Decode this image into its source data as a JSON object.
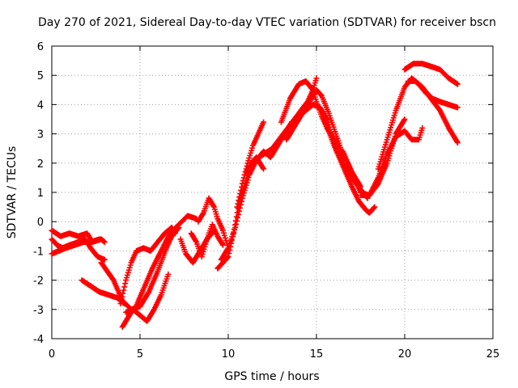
{
  "chart_data": {
    "type": "scatter",
    "title": "Day 270 of 2021, Sidereal Day-to-day VTEC variation (SDTVAR) for receiver bscn",
    "xlabel": "GPS time / hours",
    "ylabel": "SDTVAR / TECUs",
    "xlim": [
      0,
      25
    ],
    "ylim": [
      -4,
      6
    ],
    "x_ticks": [
      "0",
      "5",
      "10",
      "15",
      "20",
      "25"
    ],
    "y_ticks": [
      "-4",
      "-3",
      "-2",
      "-1",
      "0",
      "1",
      "2",
      "3",
      "4",
      "5",
      "6"
    ],
    "grid": true,
    "marker": "plus",
    "color": "#ff0000",
    "series": [
      {
        "name": "s1",
        "x": [
          0.0,
          0.5,
          1.0,
          1.5,
          2.0,
          2.3,
          2.8,
          3.0
        ],
        "y": [
          -0.3,
          -0.5,
          -0.4,
          -0.5,
          -0.4,
          -0.7,
          -0.6,
          -0.7
        ]
      },
      {
        "name": "s2",
        "x": [
          0.0,
          0.3,
          0.6,
          1.0,
          1.5,
          1.9,
          2.2,
          2.6,
          3.0
        ],
        "y": [
          -0.6,
          -0.8,
          -0.9,
          -0.8,
          -0.7,
          -0.6,
          -0.9,
          -1.2,
          -1.3
        ]
      },
      {
        "name": "s3",
        "x": [
          2.8,
          3.5,
          4.0,
          4.5,
          5.0,
          5.5,
          6.0,
          6.5,
          6.8,
          7.2
        ],
        "y": [
          -1.4,
          -2.0,
          -2.7,
          -3.0,
          -2.9,
          -2.4,
          -1.7,
          -0.9,
          -0.5,
          -0.2
        ]
      },
      {
        "name": "s4",
        "x": [
          0.0,
          0.4,
          0.8,
          1.3,
          1.8,
          2.2,
          2.7
        ],
        "y": [
          -1.1,
          -1.0,
          -0.9,
          -0.8,
          -0.7,
          -0.7,
          -0.6
        ]
      },
      {
        "name": "s5",
        "x": [
          1.7,
          2.2,
          2.7,
          3.2,
          3.7,
          4.1
        ],
        "y": [
          -2.0,
          -2.2,
          -2.4,
          -2.5,
          -2.6,
          -2.8
        ]
      },
      {
        "name": "s6",
        "x": [
          4.0,
          4.3,
          4.6,
          5.0,
          5.4,
          5.8,
          6.2,
          6.6
        ],
        "y": [
          -3.6,
          -3.3,
          -3.0,
          -3.2,
          -3.4,
          -3.0,
          -2.5,
          -1.8
        ]
      },
      {
        "name": "s7",
        "x": [
          3.9,
          4.2,
          4.5,
          4.8,
          5.2,
          5.6,
          6.0,
          6.4,
          6.8,
          7.0
        ],
        "y": [
          -2.8,
          -2.0,
          -1.4,
          -1.0,
          -0.9,
          -1.0,
          -0.7,
          -0.4,
          -0.2,
          -0.4
        ]
      },
      {
        "name": "s8",
        "x": [
          4.2,
          4.7,
          5.2,
          5.7,
          6.2,
          6.7,
          7.2,
          7.7,
          8.2
        ],
        "y": [
          -3.1,
          -3.0,
          -2.3,
          -1.6,
          -1.0,
          -0.4,
          -0.1,
          0.2,
          0.1
        ]
      },
      {
        "name": "s9",
        "x": [
          7.3,
          7.6,
          8.0,
          8.4,
          8.8,
          9.2
        ],
        "y": [
          -0.6,
          -1.1,
          -1.4,
          -1.0,
          -0.6,
          -0.3
        ]
      },
      {
        "name": "s10",
        "x": [
          7.9,
          8.2,
          8.5,
          8.8,
          9.1,
          9.4,
          9.7
        ],
        "y": [
          -0.4,
          -0.7,
          -1.2,
          -0.6,
          -0.1,
          -0.5,
          -0.8
        ]
      },
      {
        "name": "s11",
        "x": [
          8.3,
          8.6,
          8.9,
          9.2,
          9.4,
          9.7,
          10.0
        ],
        "y": [
          0.0,
          0.3,
          0.8,
          0.5,
          0.1,
          -0.3,
          -0.9
        ]
      },
      {
        "name": "s12",
        "x": [
          9.4,
          9.7,
          10.0,
          10.3,
          10.6,
          11.0,
          11.3,
          11.6,
          12.0
        ],
        "y": [
          -1.6,
          -1.4,
          -1.2,
          -0.4,
          0.6,
          1.4,
          2.0,
          2.2,
          1.8
        ]
      },
      {
        "name": "s13",
        "x": [
          9.6,
          10.0,
          10.4,
          10.8,
          11.2,
          11.6,
          12.0,
          12.4,
          12.8,
          13.2,
          13.6
        ],
        "y": [
          -1.3,
          -0.9,
          -0.2,
          0.8,
          1.6,
          2.1,
          2.4,
          2.2,
          2.6,
          3.0,
          3.4
        ]
      },
      {
        "name": "s14",
        "x": [
          10.5,
          10.8,
          11.1,
          11.4,
          11.7,
          12.0
        ],
        "y": [
          0.5,
          1.3,
          2.0,
          2.6,
          3.0,
          3.4
        ]
      },
      {
        "name": "s15",
        "x": [
          11.0,
          11.5,
          12.0,
          12.5,
          13.0,
          13.5,
          14.0,
          14.5,
          14.8,
          15.0
        ],
        "y": [
          1.7,
          2.1,
          2.3,
          2.5,
          2.9,
          3.3,
          3.7,
          4.1,
          4.5,
          4.9
        ]
      },
      {
        "name": "s16",
        "x": [
          13.0,
          13.5,
          14.0,
          14.4,
          14.8,
          15.0,
          15.3,
          15.6,
          16.0,
          16.4
        ],
        "y": [
          3.4,
          4.2,
          4.7,
          4.8,
          4.5,
          4.1,
          3.6,
          3.2,
          2.8,
          2.3
        ]
      },
      {
        "name": "s17",
        "x": [
          13.3,
          13.8,
          14.3,
          14.7,
          15.0,
          15.3,
          15.7,
          16.1,
          16.5,
          17.0,
          17.5
        ],
        "y": [
          2.8,
          3.3,
          3.8,
          4.2,
          4.5,
          4.3,
          3.7,
          3.0,
          2.3,
          1.7,
          1.2
        ]
      },
      {
        "name": "s18",
        "x": [
          14.0,
          14.4,
          14.8,
          15.2,
          15.6,
          16.0,
          16.5,
          17.0,
          17.5,
          17.9
        ],
        "y": [
          3.6,
          3.8,
          4.0,
          3.9,
          3.5,
          2.7,
          2.0,
          1.5,
          1.1,
          0.8
        ]
      },
      {
        "name": "s19",
        "x": [
          15.5,
          16.0,
          16.5,
          17.0,
          17.4,
          17.8,
          18.0,
          18.3
        ],
        "y": [
          3.4,
          2.6,
          1.9,
          1.2,
          0.7,
          0.4,
          0.3,
          0.5
        ]
      },
      {
        "name": "s20",
        "x": [
          16.5,
          17.0,
          17.5,
          18.0,
          18.5,
          19.0,
          19.5,
          20.0
        ],
        "y": [
          2.4,
          1.7,
          1.0,
          0.9,
          1.3,
          2.0,
          3.0,
          3.5
        ]
      },
      {
        "name": "s21",
        "x": [
          17.5,
          18.0,
          18.5,
          19.0,
          19.5,
          20.0,
          20.4,
          20.8,
          21.0
        ],
        "y": [
          0.9,
          0.9,
          1.5,
          2.3,
          2.9,
          3.1,
          2.8,
          2.8,
          3.2
        ]
      },
      {
        "name": "s22",
        "x": [
          18.5,
          19.0,
          19.5,
          20.0,
          20.4,
          20.8,
          21.2,
          21.6,
          22.0,
          22.5,
          23.0
        ],
        "y": [
          1.8,
          2.8,
          3.8,
          4.6,
          4.9,
          4.7,
          4.4,
          4.2,
          4.1,
          4.0,
          3.9
        ]
      },
      {
        "name": "s23",
        "x": [
          20.0,
          20.5,
          21.0,
          21.5,
          22.0,
          22.5,
          23.0
        ],
        "y": [
          5.2,
          5.4,
          5.4,
          5.3,
          5.2,
          4.9,
          4.7
        ]
      },
      {
        "name": "s24",
        "x": [
          20.2,
          20.6,
          21.0,
          21.5,
          22.0,
          22.5,
          23.0
        ],
        "y": [
          4.8,
          4.8,
          4.6,
          4.2,
          3.8,
          3.2,
          2.7
        ]
      }
    ]
  }
}
